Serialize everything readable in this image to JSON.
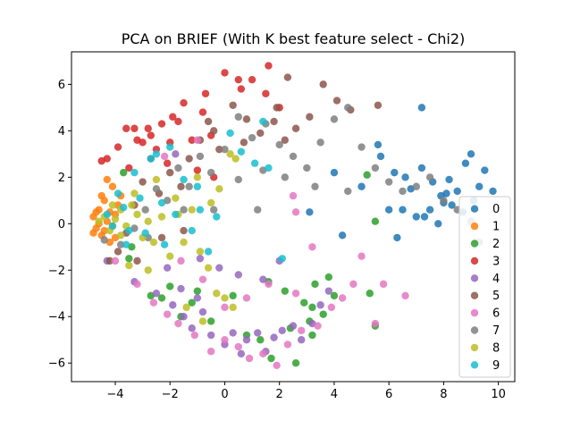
{
  "chart_data": {
    "type": "scatter",
    "title": "PCA on BRIEF (With K best feature select - Chi2)",
    "xlabel": "",
    "ylabel": "",
    "xlim": [
      -5.6,
      10.6
    ],
    "ylim": [
      -6.8,
      7.4
    ],
    "xticks": [
      -4,
      -2,
      0,
      2,
      4,
      6,
      8,
      10
    ],
    "yticks": [
      -6,
      -4,
      -2,
      0,
      2,
      4,
      6
    ],
    "grid": false,
    "legend_position": "lower-right",
    "series": [
      {
        "name": "0",
        "color": "#1f77b4",
        "points": [
          [
            6.2,
            2.2
          ],
          [
            6.8,
            1.5
          ],
          [
            7.2,
            5.0
          ],
          [
            7.6,
            1.8
          ],
          [
            7.9,
            1.2
          ],
          [
            8.2,
            1.9
          ],
          [
            8.5,
            1.4
          ],
          [
            8.8,
            2.6
          ],
          [
            9.0,
            3.0
          ],
          [
            9.3,
            1.6
          ],
          [
            9.5,
            2.3
          ],
          [
            9.8,
            1.4
          ],
          [
            6.0,
            0.6
          ],
          [
            6.5,
            0.6
          ],
          [
            7.0,
            0.3
          ],
          [
            7.5,
            0.6
          ],
          [
            7.8,
            0.0
          ],
          [
            8.3,
            0.8
          ],
          [
            8.7,
            0.5
          ],
          [
            9.1,
            1.0
          ],
          [
            5.6,
            3.4
          ],
          [
            6.3,
            -0.6
          ],
          [
            7.3,
            0.3
          ],
          [
            8.0,
            0.9
          ],
          [
            4.0,
            2.2
          ],
          [
            4.3,
            -0.5
          ],
          [
            3.1,
            0.5
          ],
          [
            5.0,
            1.6
          ],
          [
            5.7,
            2.9
          ],
          [
            6.6,
            2.0
          ],
          [
            7.2,
            2.4
          ],
          [
            8.1,
            1.3
          ]
        ]
      },
      {
        "name": "1",
        "color": "#ff7f0e",
        "points": [
          [
            -4.8,
            0.3
          ],
          [
            -4.7,
            -0.2
          ],
          [
            -4.6,
            0.6
          ],
          [
            -4.5,
            -0.5
          ],
          [
            -4.4,
            1.0
          ],
          [
            -4.3,
            0.1
          ],
          [
            -4.2,
            -0.8
          ],
          [
            -4.1,
            1.6
          ],
          [
            -4.0,
            0.4
          ],
          [
            -4.6,
            0.0
          ],
          [
            -4.4,
            -0.3
          ],
          [
            -4.2,
            0.5
          ],
          [
            -4.5,
            1.2
          ],
          [
            -4.3,
            1.9
          ],
          [
            -4.1,
            -0.1
          ],
          [
            -3.9,
            0.8
          ],
          [
            -4.7,
            0.5
          ],
          [
            -4.8,
            -0.4
          ],
          [
            -4.0,
            -0.6
          ],
          [
            -3.8,
            1.2
          ]
        ]
      },
      {
        "name": "2",
        "color": "#2ca02c",
        "points": [
          [
            -3.4,
            -1.0
          ],
          [
            -2.3,
            -3.2
          ],
          [
            -2.0,
            -2.7
          ],
          [
            -1.2,
            -3.4
          ],
          [
            -1.0,
            -2.9
          ],
          [
            0.3,
            -3.1
          ],
          [
            1.6,
            -2.5
          ],
          [
            2.2,
            -2.9
          ],
          [
            2.9,
            -3.4
          ],
          [
            3.3,
            -2.6
          ],
          [
            3.8,
            -2.3
          ],
          [
            4.0,
            -3.1
          ],
          [
            5.3,
            -3.0
          ],
          [
            5.5,
            -4.4
          ],
          [
            5.2,
            2.1
          ],
          [
            5.5,
            0.1
          ],
          [
            3.2,
            -3.6
          ],
          [
            3.1,
            -4.2
          ],
          [
            2.4,
            -4.5
          ],
          [
            1.3,
            -5.0
          ],
          [
            0.8,
            -4.8
          ],
          [
            -0.5,
            -4.2
          ],
          [
            -1.6,
            -4.0
          ],
          [
            -2.7,
            -3.1
          ],
          [
            -3.5,
            -1.5
          ],
          [
            -3.7,
            2.2
          ],
          [
            2.6,
            -6.0
          ],
          [
            1.7,
            -5.8
          ],
          [
            3.2,
            -4.8
          ],
          [
            3.6,
            -3.9
          ]
        ]
      },
      {
        "name": "3",
        "color": "#d62728",
        "points": [
          [
            -4.5,
            2.7
          ],
          [
            -4.3,
            2.8
          ],
          [
            -3.9,
            3.3
          ],
          [
            -3.6,
            4.1
          ],
          [
            -3.5,
            2.4
          ],
          [
            -3.2,
            3.6
          ],
          [
            -3.0,
            3.5
          ],
          [
            -2.8,
            4.1
          ],
          [
            -2.5,
            3.2
          ],
          [
            -2.3,
            4.3
          ],
          [
            -2.0,
            3.5
          ],
          [
            -1.7,
            4.4
          ],
          [
            -1.5,
            5.2
          ],
          [
            -1.2,
            3.6
          ],
          [
            -0.8,
            4.8
          ],
          [
            -0.7,
            5.6
          ],
          [
            -0.5,
            3.8
          ],
          [
            0.0,
            6.5
          ],
          [
            0.5,
            6.2
          ],
          [
            0.6,
            5.8
          ],
          [
            1.0,
            6.2
          ],
          [
            1.5,
            5.6
          ],
          [
            1.6,
            6.8
          ],
          [
            2.0,
            5.0
          ],
          [
            -2.7,
            3.8
          ],
          [
            -1.9,
            4.6
          ],
          [
            -3.3,
            4.1
          ],
          [
            -2.1,
            2.6
          ],
          [
            -1.0,
            2.3
          ],
          [
            -0.4,
            2.0
          ]
        ]
      },
      {
        "name": "4",
        "color": "#9467bd",
        "points": [
          [
            -4.3,
            -1.6
          ],
          [
            -3.3,
            -2.5
          ],
          [
            -2.5,
            -3.0
          ],
          [
            -1.9,
            -3.5
          ],
          [
            -1.5,
            -4.0
          ],
          [
            -1.2,
            -4.5
          ],
          [
            -0.8,
            -3.8
          ],
          [
            -0.5,
            -4.8
          ],
          [
            0.0,
            -5.2
          ],
          [
            0.3,
            -4.7
          ],
          [
            0.6,
            -5.6
          ],
          [
            0.8,
            -5.0
          ],
          [
            1.2,
            -4.7
          ],
          [
            1.5,
            -5.5
          ],
          [
            1.8,
            -4.9
          ],
          [
            2.1,
            -4.6
          ],
          [
            2.5,
            -4.4
          ],
          [
            2.8,
            -5.0
          ],
          [
            3.2,
            -4.3
          ],
          [
            3.5,
            -3.5
          ],
          [
            3.8,
            -2.9
          ],
          [
            1.4,
            -2.4
          ],
          [
            0.5,
            -2.2
          ],
          [
            -0.2,
            -1.9
          ],
          [
            -0.9,
            -1.5
          ],
          [
            -2.1,
            -1.9
          ],
          [
            -1.6,
            -2.8
          ],
          [
            -1.0,
            -3.2
          ],
          [
            2.0,
            -1.6
          ],
          [
            -1.8,
            3.0
          ]
        ]
      },
      {
        "name": "5",
        "color": "#8c564b",
        "points": [
          [
            -4.2,
            -1.6
          ],
          [
            -3.9,
            -1.2
          ],
          [
            -3.6,
            -0.4
          ],
          [
            -3.3,
            0.8
          ],
          [
            -3.0,
            1.8
          ],
          [
            -2.7,
            2.8
          ],
          [
            -2.4,
            1.3
          ],
          [
            -2.0,
            2.2
          ],
          [
            -1.6,
            1.6
          ],
          [
            -1.3,
            2.8
          ],
          [
            -0.9,
            3.6
          ],
          [
            -0.6,
            4.4
          ],
          [
            -0.2,
            3.2
          ],
          [
            0.3,
            5.1
          ],
          [
            0.8,
            4.5
          ],
          [
            1.3,
            3.9
          ],
          [
            1.8,
            4.4
          ],
          [
            2.2,
            3.6
          ],
          [
            2.6,
            4.1
          ],
          [
            3.1,
            4.6
          ],
          [
            3.6,
            6.0
          ],
          [
            4.1,
            5.3
          ],
          [
            4.6,
            4.9
          ],
          [
            5.6,
            5.1
          ],
          [
            2.3,
            6.3
          ],
          [
            1.9,
            5.0
          ],
          [
            0.7,
            3.5
          ],
          [
            -0.4,
            4.0
          ],
          [
            -2.3,
            -0.6
          ],
          [
            -1.5,
            -0.3
          ],
          [
            -3.2,
            -1.6
          ]
        ]
      },
      {
        "name": "6",
        "color": "#e377c2",
        "points": [
          [
            -4.0,
            -1.6
          ],
          [
            -3.2,
            -2.6
          ],
          [
            -2.6,
            -3.4
          ],
          [
            -2.1,
            -3.9
          ],
          [
            -1.7,
            -4.3
          ],
          [
            -1.1,
            -4.8
          ],
          [
            -0.5,
            -5.5
          ],
          [
            0.0,
            -5.0
          ],
          [
            0.5,
            -5.3
          ],
          [
            0.9,
            -5.8
          ],
          [
            1.4,
            -5.6
          ],
          [
            1.9,
            -6.1
          ],
          [
            2.3,
            -5.2
          ],
          [
            2.8,
            -4.6
          ],
          [
            3.4,
            -4.4
          ],
          [
            3.9,
            -3.6
          ],
          [
            4.3,
            -3.2
          ],
          [
            4.7,
            -2.6
          ],
          [
            5.0,
            -1.4
          ],
          [
            5.5,
            -4.3
          ],
          [
            5.8,
            -2.6
          ],
          [
            6.6,
            -3.1
          ],
          [
            2.6,
            -3.0
          ],
          [
            1.6,
            -2.6
          ],
          [
            0.8,
            -3.2
          ],
          [
            0.0,
            -3.6
          ],
          [
            -0.8,
            -2.4
          ],
          [
            -1.6,
            -1.6
          ],
          [
            2.6,
            0.5
          ],
          [
            2.5,
            1.2
          ],
          [
            -2.2,
            2.9
          ],
          [
            -1.0,
            3.6
          ],
          [
            3.2,
            -1.0
          ]
        ]
      },
      {
        "name": "7",
        "color": "#7f7f7f",
        "points": [
          [
            -4.4,
            -0.7
          ],
          [
            -3.8,
            -0.9
          ],
          [
            -3.3,
            -0.2
          ],
          [
            -2.9,
            0.6
          ],
          [
            -2.5,
            1.5
          ],
          [
            -2.1,
            1.0
          ],
          [
            -1.7,
            2.4
          ],
          [
            -1.3,
            1.6
          ],
          [
            -0.9,
            2.9
          ],
          [
            -0.5,
            2.2
          ],
          [
            0.0,
            3.2
          ],
          [
            0.5,
            4.6
          ],
          [
            1.0,
            3.7
          ],
          [
            1.5,
            4.3
          ],
          [
            2.0,
            3.4
          ],
          [
            2.5,
            2.9
          ],
          [
            3.0,
            2.4
          ],
          [
            3.5,
            3.5
          ],
          [
            4.0,
            4.5
          ],
          [
            4.5,
            5.0
          ],
          [
            5.0,
            3.3
          ],
          [
            5.5,
            2.4
          ],
          [
            6.0,
            1.8
          ],
          [
            6.5,
            1.4
          ],
          [
            7.0,
            1.6
          ],
          [
            7.5,
            2.0
          ],
          [
            8.0,
            1.0
          ],
          [
            8.5,
            0.6
          ],
          [
            9.0,
            0.1
          ],
          [
            9.3,
            -0.8
          ],
          [
            0.5,
            1.9
          ],
          [
            1.4,
            2.3
          ],
          [
            2.2,
            2.0
          ],
          [
            3.3,
            1.6
          ],
          [
            4.5,
            1.4
          ],
          [
            -1.5,
            0.6
          ],
          [
            -0.4,
            0.6
          ],
          [
            1.2,
            0.6
          ],
          [
            -2.8,
            -0.6
          ]
        ]
      },
      {
        "name": "8",
        "color": "#bcbd22",
        "points": [
          [
            -4.6,
            0.1
          ],
          [
            -4.4,
            0.3
          ],
          [
            -4.2,
            -0.3
          ],
          [
            -4.0,
            0.2
          ],
          [
            -3.8,
            0.6
          ],
          [
            -3.6,
            -0.1
          ],
          [
            -3.4,
            0.8
          ],
          [
            -3.2,
            0.4
          ],
          [
            -3.0,
            -0.6
          ],
          [
            -2.8,
            0.1
          ],
          [
            -2.6,
            -0.8
          ],
          [
            -2.3,
            0.3
          ],
          [
            -2.0,
            -1.4
          ],
          [
            -1.7,
            0.4
          ],
          [
            -1.5,
            -0.8
          ],
          [
            -1.2,
            0.6
          ],
          [
            -0.9,
            -1.2
          ],
          [
            -0.6,
            -1.9
          ],
          [
            -0.3,
            -3.0
          ],
          [
            0.0,
            -3.2
          ],
          [
            0.3,
            -3.6
          ],
          [
            -0.2,
            1.5
          ],
          [
            -0.5,
            0.9
          ],
          [
            0.4,
            2.8
          ],
          [
            0.2,
            3.0
          ],
          [
            -1.0,
            2.0
          ],
          [
            -1.8,
            1.1
          ],
          [
            -2.5,
            1.9
          ],
          [
            -3.5,
            -1.8
          ],
          [
            -2.8,
            -2.0
          ],
          [
            -1.4,
            -3.6
          ],
          [
            -0.8,
            -4.2
          ],
          [
            -3.8,
            -0.5
          ],
          [
            -4.1,
            0.8
          ],
          [
            -3.3,
            1.3
          ]
        ]
      },
      {
        "name": "9",
        "color": "#17becf",
        "points": [
          [
            -4.3,
            0.4
          ],
          [
            -4.1,
            -0.1
          ],
          [
            -3.9,
            1.3
          ],
          [
            -3.7,
            0.7
          ],
          [
            -3.5,
            -0.3
          ],
          [
            -3.3,
            2.2
          ],
          [
            -3.1,
            1.1
          ],
          [
            -2.9,
            -0.4
          ],
          [
            -2.7,
            2.8
          ],
          [
            -2.5,
            3.0
          ],
          [
            -2.3,
            0.9
          ],
          [
            -2.0,
            3.3
          ],
          [
            -1.8,
            0.4
          ],
          [
            -1.5,
            1.9
          ],
          [
            -1.2,
            -0.3
          ],
          [
            -0.9,
            0.6
          ],
          [
            -0.6,
            -1.2
          ],
          [
            -0.3,
            0.3
          ],
          [
            0.2,
            3.9
          ],
          [
            0.6,
            3.1
          ],
          [
            1.1,
            2.6
          ],
          [
            1.6,
            2.4
          ],
          [
            2.1,
            -1.5
          ],
          [
            1.4,
            4.4
          ],
          [
            -2.2,
            -0.9
          ],
          [
            -3.6,
            -0.9
          ],
          [
            -1.0,
            1.6
          ]
        ]
      }
    ]
  }
}
